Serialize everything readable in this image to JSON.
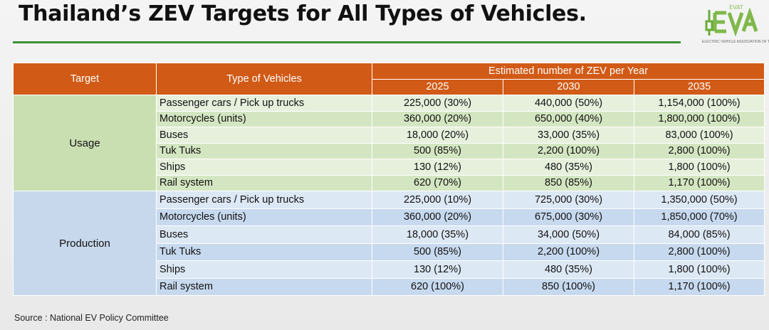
{
  "title": "Thailand’s ZEV Targets for All Types of Vehicles.",
  "logo": {
    "text": "EVAT",
    "subtitle": "ELECTRIC VEHICLE ASSOCIATION OF THAILAND"
  },
  "colors": {
    "header": "#d15a16",
    "rule": "#3f8f3a",
    "usage_fill": "#d3e6c1",
    "production_fill": "#c7d9ee"
  },
  "table": {
    "headers": {
      "target": "Target",
      "type": "Type of Vehicles",
      "estimated": "Estimated number of ZEV per Year",
      "years": [
        "2025",
        "2030",
        "2035"
      ]
    },
    "groups": [
      {
        "name": "Usage",
        "rows": [
          {
            "type": "Passenger cars / Pick up trucks",
            "v2025": "225,000 (30%)",
            "v2030": "440,000 (50%)",
            "v2035": "1,154,000 (100%)"
          },
          {
            "type": "Motorcycles (units)",
            "v2025": "360,000 (20%)",
            "v2030": "650,000 (40%)",
            "v2035": "1,800,000 (100%)"
          },
          {
            "type": "Buses",
            "v2025": "18,000 (20%)",
            "v2030": "33,000 (35%)",
            "v2035": "83,000 (100%)"
          },
          {
            "type": "Tuk Tuks",
            "v2025": "500 (85%)",
            "v2030": "2,200 (100%)",
            "v2035": "2,800 (100%)"
          },
          {
            "type": "Ships",
            "v2025": "130 (12%)",
            "v2030": "480 (35%)",
            "v2035": "1,800 (100%)"
          },
          {
            "type": "Rail system",
            "v2025": "620 (70%)",
            "v2030": "850 (85%)",
            "v2035": "1,170 (100%)"
          }
        ]
      },
      {
        "name": "Production",
        "rows": [
          {
            "type": "Passenger cars / Pick up trucks",
            "v2025": "225,000 (10%)",
            "v2030": "725,000 (30%)",
            "v2035": "1,350,000 (50%)"
          },
          {
            "type": "Motorcycles (units)",
            "v2025": "360,000 (20%)",
            "v2030": "675,000 (30%)",
            "v2035": "1,850,000 (70%)"
          },
          {
            "type": "Buses",
            "v2025": "18,000 (35%)",
            "v2030": "34,000 (50%)",
            "v2035": "84,000 (85%)"
          },
          {
            "type": "Tuk Tuks",
            "v2025": "500 (85%)",
            "v2030": "2,200 (100%)",
            "v2035": "2,800 (100%)"
          },
          {
            "type": "Ships",
            "v2025": "130 (12%)",
            "v2030": "480 (35%)",
            "v2035": "1,800 (100%)"
          },
          {
            "type": "Rail system",
            "v2025": "620 (100%)",
            "v2030": "850 (100%)",
            "v2035": "1,170 (100%)"
          }
        ]
      }
    ]
  },
  "source": "Source : National EV Policy Committee"
}
